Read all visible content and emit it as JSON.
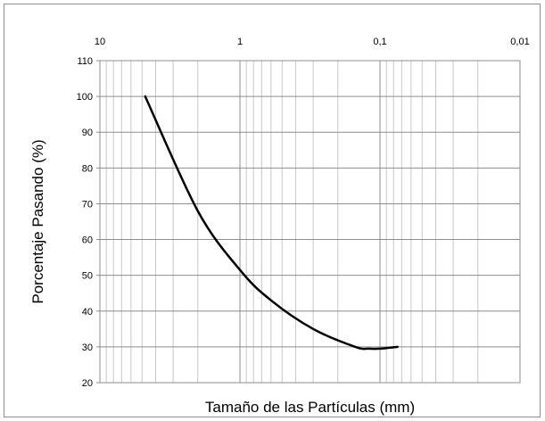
{
  "chart_data": {
    "type": "line",
    "xlabel": "Tamaño de las Partículas (mm)",
    "ylabel": "Porcentaje Pasando (%)",
    "x_scale": "log",
    "x_reversed": true,
    "x_axis_position": "top",
    "xlim": [
      10,
      0.01
    ],
    "ylim": [
      20,
      110
    ],
    "x_ticks": [
      {
        "value": 10,
        "label": "10"
      },
      {
        "value": 1,
        "label": "1"
      },
      {
        "value": 0.1,
        "label": "0,1"
      },
      {
        "value": 0.01,
        "label": "0,01"
      }
    ],
    "y_ticks": [
      {
        "value": 20,
        "label": "20"
      },
      {
        "value": 30,
        "label": "30"
      },
      {
        "value": 40,
        "label": "40"
      },
      {
        "value": 50,
        "label": "50"
      },
      {
        "value": 60,
        "label": "60"
      },
      {
        "value": 70,
        "label": "70"
      },
      {
        "value": 80,
        "label": "80"
      },
      {
        "value": 90,
        "label": "90"
      },
      {
        "value": 100,
        "label": "100"
      },
      {
        "value": 110,
        "label": "110"
      }
    ],
    "grid": {
      "major": true,
      "minor_x": true
    },
    "series": [
      {
        "color": "#000000",
        "x": [
          4.75,
          2.0,
          1.0,
          0.6,
          0.3,
          0.15,
          0.12,
          0.1,
          0.075
        ],
        "y": [
          100,
          68,
          51.5,
          43,
          35,
          30,
          29.5,
          29.5,
          30
        ]
      }
    ]
  }
}
